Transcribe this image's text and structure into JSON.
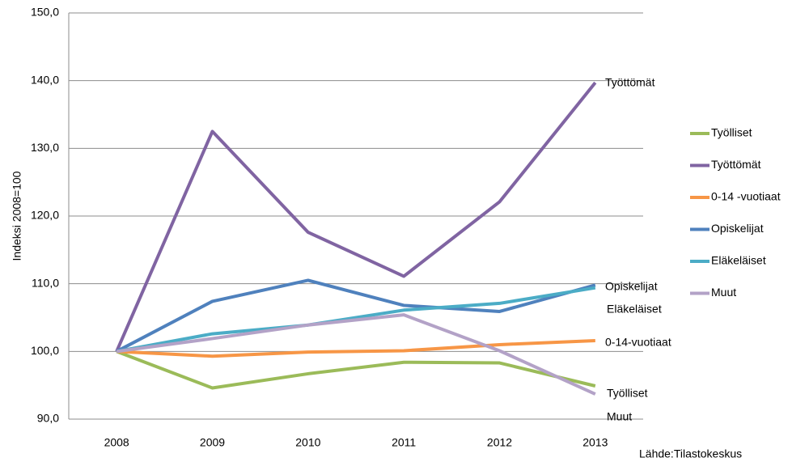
{
  "chart_data": {
    "type": "line",
    "y_label": "Indeksi 2008=100",
    "source": "Lähde:Tilastokeskus",
    "categories": [
      "2008",
      "2009",
      "2010",
      "2011",
      "2012",
      "2013"
    ],
    "series": [
      {
        "name": "Työlliset",
        "color": "#9bbb59",
        "values": [
          100,
          94.6,
          96.7,
          98.4,
          98.3,
          94.9
        ]
      },
      {
        "name": "Työttömät",
        "color": "#8064a2",
        "values": [
          100,
          132.5,
          117.6,
          111.1,
          122.1,
          139.7
        ]
      },
      {
        "name": "0-14 -vuotiaat",
        "color": "#f79646",
        "values": [
          100,
          99.3,
          99.9,
          100.1,
          101.0,
          101.6
        ]
      },
      {
        "name": "Opiskelijat",
        "color": "#4f81bd",
        "values": [
          100,
          107.4,
          110.5,
          106.8,
          105.9,
          109.8
        ]
      },
      {
        "name": "Eläkeläiset",
        "color": "#4bacc6",
        "values": [
          100,
          102.6,
          103.9,
          106.1,
          107.1,
          109.4
        ]
      },
      {
        "name": "Muut",
        "color": "#b3a2c7",
        "values": [
          100,
          101.9,
          103.9,
          105.4,
          100.1,
          93.7
        ]
      }
    ],
    "annotations": [
      "Työttömät",
      "Opiskelijat",
      "Eläkeläiset",
      "0-14-vuotiaat",
      "Työlliset",
      "Muut"
    ],
    "ylim": [
      90,
      150
    ],
    "yticks": [
      {
        "value": 90,
        "label": "90,0"
      },
      {
        "value": 100,
        "label": "100,0"
      },
      {
        "value": 110,
        "label": "110,0"
      },
      {
        "value": 120,
        "label": "120,0"
      },
      {
        "value": 130,
        "label": "130,0"
      },
      {
        "value": 140,
        "label": "140,0"
      },
      {
        "value": 150,
        "label": "150,0"
      }
    ],
    "grid": true,
    "legend": "right"
  }
}
